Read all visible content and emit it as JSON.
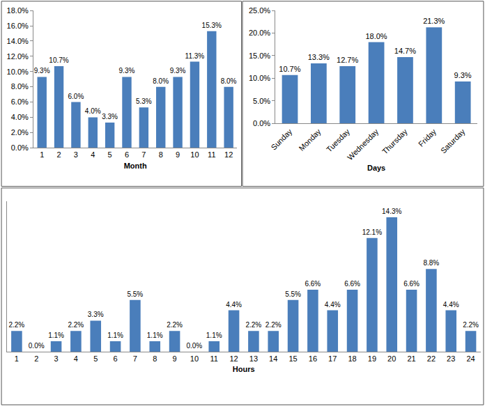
{
  "chart_data": [
    {
      "type": "bar",
      "xlabel": "Month",
      "categories": [
        "1",
        "2",
        "3",
        "4",
        "5",
        "6",
        "7",
        "8",
        "9",
        "10",
        "11",
        "12"
      ],
      "values": [
        9.3,
        10.7,
        6.0,
        4.0,
        3.3,
        9.3,
        5.3,
        8.0,
        9.3,
        11.3,
        15.3,
        8.0
      ],
      "value_labels": [
        "9.3%",
        "10.7%",
        "6.0%",
        "4.0%",
        "3.3%",
        "9.3%",
        "5.3%",
        "8.0%",
        "9.3%",
        "11.3%",
        "15.3%",
        "8.0%"
      ],
      "data_labels": true,
      "color": "#4a7ebb",
      "grid": false,
      "ylim": [
        0,
        18
      ],
      "yticks": [
        {
          "value": 0,
          "label": "0.0%"
        },
        {
          "value": 2,
          "label": "2.0%"
        },
        {
          "value": 4,
          "label": "4.0%"
        },
        {
          "value": 6,
          "label": "6.0%"
        },
        {
          "value": 8,
          "label": "8.0%"
        },
        {
          "value": 10,
          "label": "10.0%"
        },
        {
          "value": 12,
          "label": "12.0%"
        },
        {
          "value": 14,
          "label": "14.0%"
        },
        {
          "value": 16,
          "label": "16.0%"
        },
        {
          "value": 18,
          "label": "18.0%"
        }
      ]
    },
    {
      "type": "bar",
      "xlabel": "Days",
      "categories": [
        "Sunday",
        "Monday",
        "Tuesday",
        "Wednesday",
        "Thursday",
        "Friday",
        "Saturday"
      ],
      "values": [
        10.7,
        13.3,
        12.7,
        18.0,
        14.7,
        21.3,
        9.3
      ],
      "value_labels": [
        "10.7%",
        "13.3%",
        "12.7%",
        "18.0%",
        "14.7%",
        "21.3%",
        "9.3%"
      ],
      "data_labels": true,
      "color": "#4a7ebb",
      "grid": false,
      "ylim": [
        0,
        25
      ],
      "yticks": [
        {
          "value": 0,
          "label": "0.0%"
        },
        {
          "value": 5,
          "label": "5.0%"
        },
        {
          "value": 10,
          "label": "10.0%"
        },
        {
          "value": 15,
          "label": "15.0%"
        },
        {
          "value": 20,
          "label": "20.0%"
        },
        {
          "value": 25,
          "label": "25.0%"
        }
      ]
    },
    {
      "type": "bar",
      "xlabel": "Hours",
      "categories": [
        "1",
        "2",
        "3",
        "4",
        "5",
        "6",
        "7",
        "8",
        "9",
        "10",
        "11",
        "12",
        "13",
        "14",
        "15",
        "16",
        "17",
        "18",
        "19",
        "20",
        "21",
        "22",
        "23",
        "24"
      ],
      "values": [
        2.2,
        0.0,
        1.1,
        2.2,
        3.3,
        1.1,
        5.5,
        1.1,
        2.2,
        0.0,
        1.1,
        4.4,
        2.2,
        2.2,
        5.5,
        6.6,
        4.4,
        6.6,
        12.1,
        14.3,
        6.6,
        8.8,
        4.4,
        2.2
      ],
      "value_labels": [
        "2.2%",
        "0.0%",
        "1.1%",
        "2.2%",
        "3.3%",
        "1.1%",
        "5.5%",
        "1.1%",
        "2.2%",
        "0.0%",
        "1.1%",
        "4.4%",
        "2.2%",
        "2.2%",
        "5.5%",
        "6.6%",
        "4.4%",
        "6.6%",
        "12.1%",
        "14.3%",
        "6.6%",
        "8.8%",
        "4.4%",
        "2.2%"
      ],
      "data_labels": true,
      "color": "#4a7ebb",
      "grid": false,
      "tick_labels": "x",
      "ylim": [
        0,
        16
      ]
    }
  ]
}
